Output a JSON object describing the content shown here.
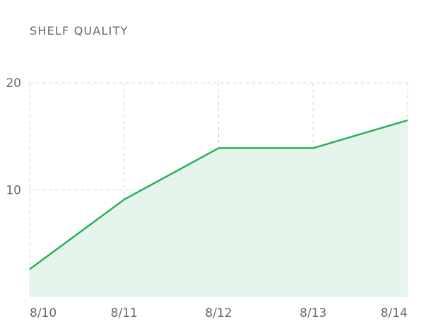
{
  "chart_data": {
    "type": "area",
    "title": "SHELF QUALITY",
    "categories": [
      "8/10",
      "8/11",
      "8/12",
      "8/13",
      "8/14"
    ],
    "series": [
      {
        "values": [
          2.6,
          9.1,
          13.9,
          13.9,
          16.5
        ]
      }
    ],
    "ylim": [
      0,
      20
    ],
    "yticks": [
      10,
      20
    ],
    "grid": true,
    "line_color": "#2bb05a",
    "fill_color": "#e6f5ec",
    "grid_color": "#d6d6d6"
  }
}
